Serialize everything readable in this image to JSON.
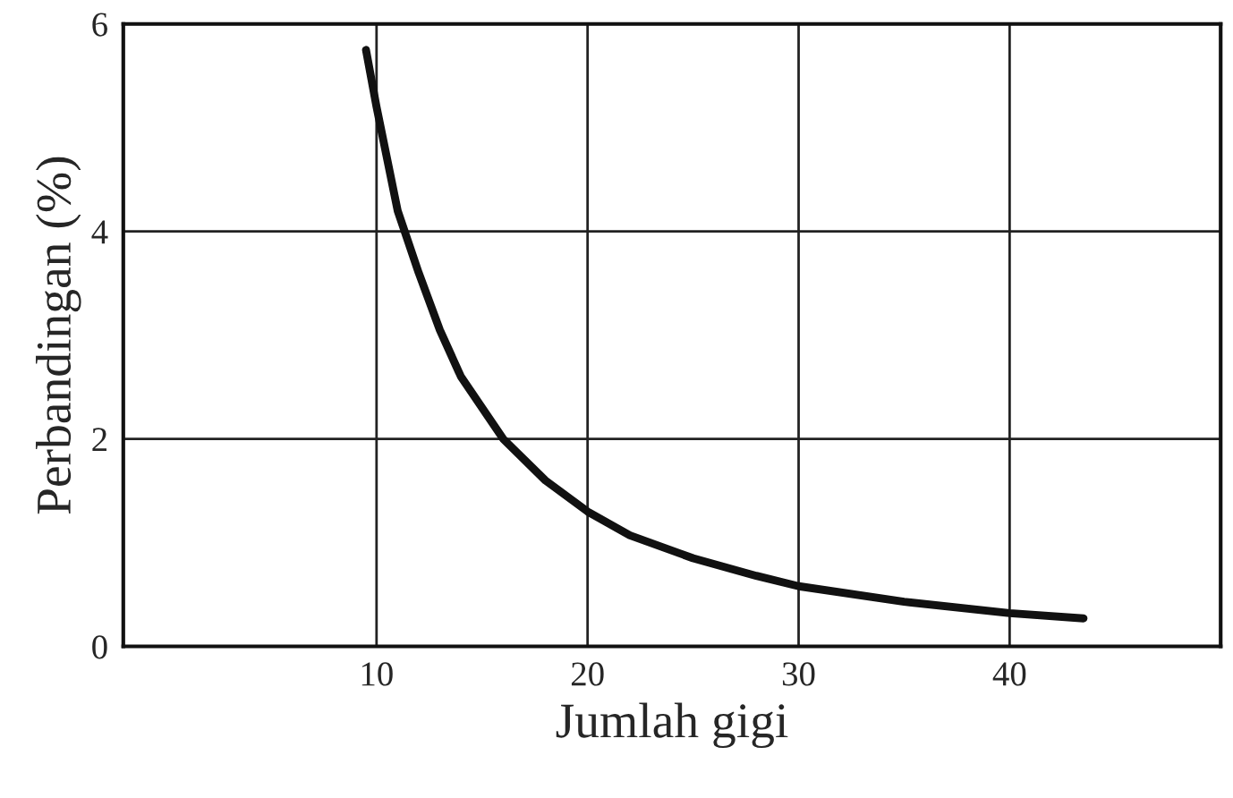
{
  "chart_data": {
    "type": "line",
    "xlabel": "Jumlah gigi",
    "ylabel": "Perbandingan (%)",
    "series": [
      {
        "color": "#111111",
        "x": [
          9.5,
          10,
          11,
          12,
          13,
          14,
          15,
          16,
          18,
          20,
          22,
          25,
          28,
          30,
          35,
          40,
          43.5
        ],
        "values": [
          5.75,
          5.2,
          4.2,
          3.6,
          3.05,
          2.6,
          2.3,
          2.0,
          1.6,
          1.3,
          1.07,
          0.85,
          0.68,
          0.58,
          0.43,
          0.32,
          0.27
        ]
      }
    ],
    "xlim": [
      -2,
      50
    ],
    "ylim": [
      0,
      6
    ],
    "xticks": [
      10,
      20,
      30,
      40
    ],
    "yticks": [
      0,
      2,
      4,
      6
    ],
    "grid": true,
    "legend": false,
    "marker": "none",
    "line_style": "solid"
  }
}
